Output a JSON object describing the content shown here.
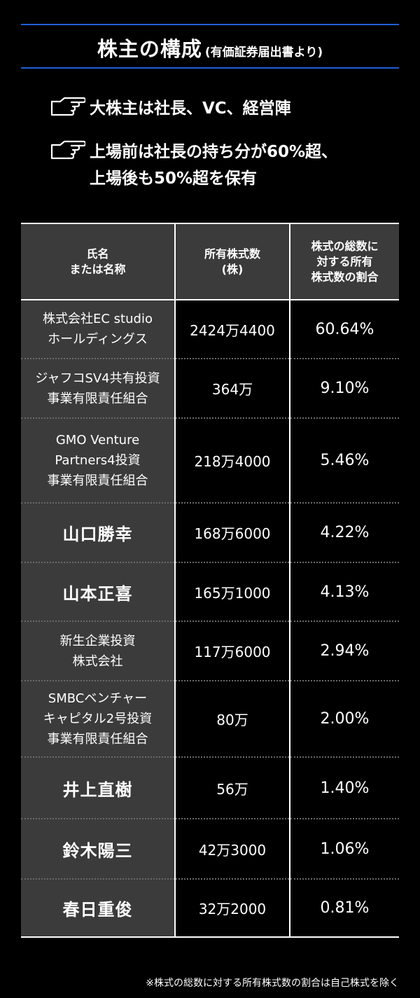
{
  "title": {
    "main": "株主の構成",
    "sub": "(有価証券届出書より)"
  },
  "points": [
    {
      "icon": "pointing-hand-icon",
      "lines": [
        "大株主は社長、VC、経営陣"
      ]
    },
    {
      "icon": "pointing-hand-icon",
      "lines": [
        "上場前は社長の持ち分が60%超、",
        "上場後も50%超を保有"
      ]
    }
  ],
  "table": {
    "headers": [
      "氏名\nまたは名称",
      "所有株式数\n(株)",
      "株式の総数に\n対する所有\n株式数の割合"
    ],
    "rows": [
      {
        "name": "株式会社EC studio\nホールディングス",
        "shares": "2424万4400",
        "ratio": "60.64%"
      },
      {
        "name": "ジャフコSV4共有投資\n事業有限責任組合",
        "shares": "364万",
        "ratio": "9.10%"
      },
      {
        "name": "GMO Venture\nPartners4投資\n事業有限責任組合",
        "shares": "218万4000",
        "ratio": "5.46%"
      },
      {
        "name": "山口勝幸",
        "shares": "168万6000",
        "ratio": "4.22%"
      },
      {
        "name": "山本正喜",
        "shares": "165万1000",
        "ratio": "4.13%"
      },
      {
        "name": "新生企業投資\n株式会社",
        "shares": "117万6000",
        "ratio": "2.94%"
      },
      {
        "name": "SMBCベンチャー\nキャピタル2号投資\n事業有限責任組合",
        "shares": "80万",
        "ratio": "2.00%"
      },
      {
        "name": "井上直樹",
        "shares": "56万",
        "ratio": "1.40%"
      },
      {
        "name": "鈴木陽三",
        "shares": "42万3000",
        "ratio": "1.06%"
      },
      {
        "name": "春日重俊",
        "shares": "32万2000",
        "ratio": "0.81%"
      }
    ]
  },
  "note": "※株式の総数に対する所有株式数の割合は自己株式を除く",
  "colors": {
    "background": "#000000",
    "accent_rule": "#1f5fd6",
    "name_cell_bg": "#3b3b3b",
    "text": "#ffffff"
  }
}
